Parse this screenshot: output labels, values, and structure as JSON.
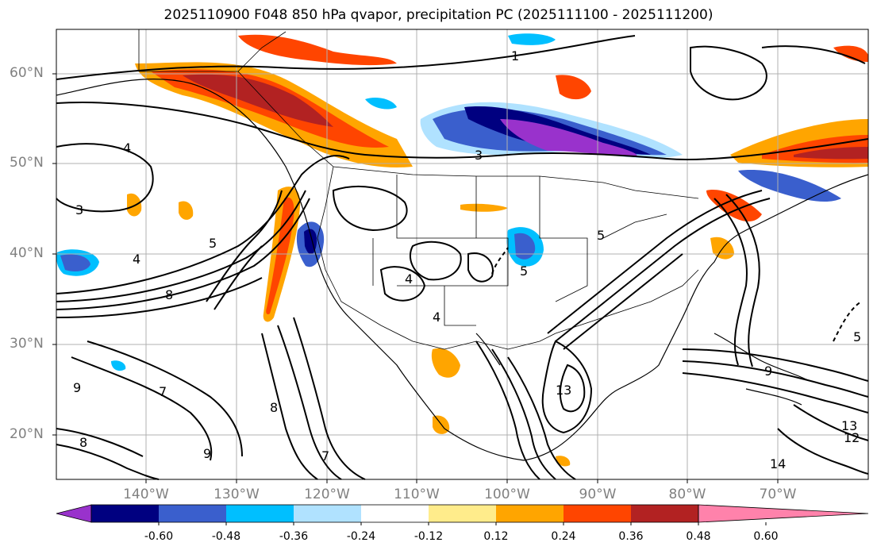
{
  "title": "2025110900 F048 850 hPa qvapor, precipitation PC (2025111100 - 2025111200)",
  "axes": {
    "lat_labels": [
      "60°N",
      "50°N",
      "40°N",
      "30°N",
      "20°N"
    ],
    "lon_labels": [
      "140°W",
      "130°W",
      "120°W",
      "110°W",
      "100°W",
      "90°W",
      "80°W",
      "70°W"
    ]
  },
  "colorbar": {
    "colors": [
      "#9932cc",
      "#000080",
      "#3a5fcd",
      "#00bfff",
      "#b0e2ff",
      "#ffffff",
      "#ffec8b",
      "#ffa500",
      "#ff4500",
      "#b22222",
      "#ff82ab"
    ],
    "labels": [
      "-0.60",
      "-0.48",
      "-0.36",
      "-0.24",
      "-0.12",
      "0.12",
      "0.24",
      "0.36",
      "0.48",
      "0.60"
    ]
  },
  "contour_labels": [
    "1",
    "3",
    "4",
    "5",
    "7",
    "8",
    "9",
    "12",
    "13",
    "14"
  ]
}
